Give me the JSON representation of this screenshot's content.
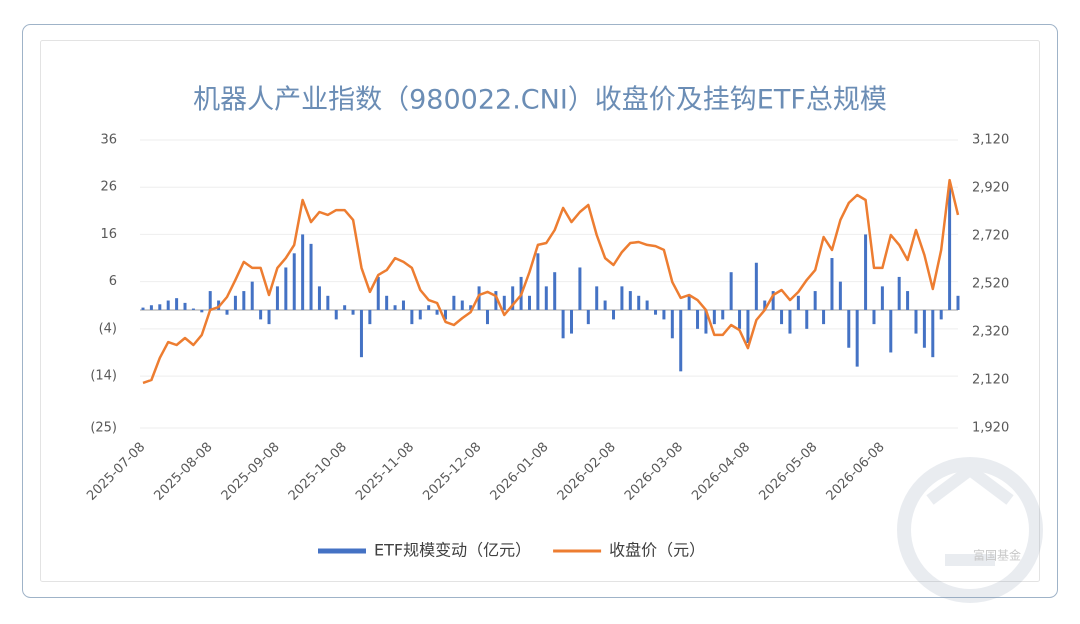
{
  "chart_data": {
    "type": "combo",
    "title": "机器人产业指数（980022.CNI）收盘价及挂钩ETF总规模",
    "watermark": "富国基金",
    "categories": [
      "2025-07-08",
      null,
      null,
      null,
      null,
      null,
      null,
      null,
      "2025-08-08",
      null,
      null,
      null,
      null,
      null,
      null,
      null,
      "2025-09-08",
      null,
      null,
      null,
      null,
      null,
      null,
      null,
      "2025-10-08",
      null,
      null,
      null,
      null,
      null,
      null,
      null,
      "2025-11-08",
      null,
      null,
      null,
      null,
      null,
      null,
      null,
      "2025-12-08",
      null,
      null,
      null,
      null,
      null,
      null,
      null,
      "2026-01-08",
      null,
      null,
      null,
      null,
      null,
      null,
      null,
      "2026-02-08",
      null,
      null,
      null,
      null,
      null,
      null,
      null,
      "2026-03-08",
      null,
      null,
      null,
      null,
      null,
      null,
      null,
      "2026-04-08",
      null,
      null,
      null,
      null,
      null,
      null,
      null,
      "2026-05-08",
      null,
      null,
      null,
      null,
      null,
      null,
      null,
      "2026-06-08",
      null,
      null,
      null,
      null,
      null,
      null,
      null,
      null,
      null
    ],
    "series": [
      {
        "name": "ETF规模变动（亿元）",
        "type": "bar",
        "axis": "y",
        "color": "#4472c4",
        "values": [
          0.5,
          1,
          1.2,
          2,
          2.5,
          1.5,
          0.3,
          -0.5,
          4,
          2,
          -1,
          3,
          4,
          6,
          -2,
          -3,
          5,
          9,
          12,
          16,
          14,
          5,
          3,
          -2,
          1,
          -1,
          -10,
          -3,
          7,
          3,
          1,
          2,
          -3,
          -2,
          1,
          -1,
          -2,
          3,
          2,
          1,
          5,
          -3,
          4,
          3,
          5,
          7,
          3,
          12,
          5,
          8,
          -6,
          -5,
          9,
          -3,
          5,
          2,
          -2,
          5,
          4,
          3,
          2,
          -1,
          -2,
          -6,
          -13,
          3,
          -4,
          -5,
          -3,
          -2,
          8,
          -4,
          -7,
          10,
          2,
          4,
          -3,
          -5,
          3,
          -4,
          4,
          -3,
          11,
          6,
          -8,
          -12,
          16,
          -3,
          5,
          -9,
          7,
          4,
          -5,
          -8,
          -10,
          -2,
          26,
          3
        ]
      },
      {
        "name": "收盘价（元）",
        "type": "line",
        "axis": "y2",
        "color": "#ed7d31",
        "values": [
          2108,
          2120,
          2212,
          2278,
          2266,
          2295,
          2266,
          2308,
          2412,
          2424,
          2466,
          2537,
          2612,
          2587,
          2587,
          2474,
          2587,
          2628,
          2683,
          2870,
          2778,
          2820,
          2808,
          2828,
          2828,
          2787,
          2587,
          2487,
          2558,
          2578,
          2628,
          2612,
          2587,
          2495,
          2453,
          2441,
          2362,
          2349,
          2378,
          2403,
          2474,
          2487,
          2470,
          2391,
          2433,
          2474,
          2570,
          2683,
          2691,
          2745,
          2837,
          2778,
          2820,
          2849,
          2724,
          2628,
          2599,
          2653,
          2691,
          2695,
          2683,
          2678,
          2662,
          2528,
          2462,
          2474,
          2453,
          2412,
          2308,
          2308,
          2349,
          2328,
          2253,
          2370,
          2412,
          2474,
          2495,
          2453,
          2487,
          2537,
          2578,
          2716,
          2662,
          2787,
          2858,
          2891,
          2870,
          2587,
          2587,
          2724,
          2683,
          2620,
          2745,
          2641,
          2499,
          2662,
          2953,
          2808
        ]
      }
    ],
    "ylim": [
      -25,
      36
    ],
    "yticks": [
      36,
      26,
      16,
      6,
      {
        "value": -4,
        "label": "(4)"
      },
      {
        "value": -14,
        "label": "(14)"
      },
      {
        "value": -25,
        "label": "(25)"
      }
    ],
    "y2lim": [
      1920,
      3120
    ],
    "y2ticks": [
      {
        "value": 3120,
        "label": "3,120"
      },
      {
        "value": 2920,
        "label": "2,920"
      },
      {
        "value": 2720,
        "label": "2,720"
      },
      {
        "value": 2520,
        "label": "2,520"
      },
      {
        "value": 2320,
        "label": "2,320"
      },
      {
        "value": 2120,
        "label": "2,120"
      },
      {
        "value": 1920,
        "label": "1,920"
      }
    ],
    "negative_tick_color": "#c00000",
    "grid": true,
    "legend": "bottom"
  }
}
